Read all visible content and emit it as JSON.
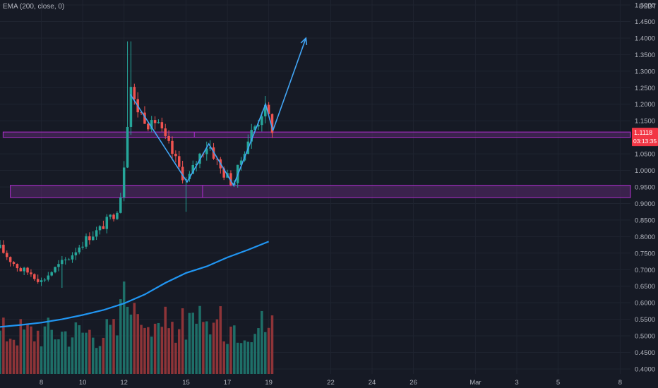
{
  "indicator": {
    "label": "EMA (200, close, 0)"
  },
  "currency": "USDT",
  "price_tag": {
    "price": "1.1118",
    "countdown": "03:13:35"
  },
  "colors": {
    "background": "#161a25",
    "grid": "#1f2430",
    "up": "#26a69a",
    "down": "#ef5350",
    "up_volume": "#1e6f68",
    "down_volume": "#8e3438",
    "ema": "#2196f3",
    "zone_fill": "#5b2a70",
    "zone_stroke": "#b02fd0",
    "pattern": "#42a5f5",
    "axis_text": "#b2b5be",
    "price_tag": "#f23645"
  },
  "chart_data": {
    "type": "candlestick",
    "y_axis": {
      "unit": "USDT",
      "ticks": [
        "1.5000",
        "1.4500",
        "1.4000",
        "1.3500",
        "1.3000",
        "1.2500",
        "1.2000",
        "1.1500",
        "1.1000",
        "1.0500",
        "1.0000",
        "0.9500",
        "0.9000",
        "0.8500",
        "0.8000",
        "0.7500",
        "0.7000",
        "0.6500",
        "0.6000",
        "0.5500",
        "0.5000",
        "0.4500",
        "0.4000"
      ],
      "range": [
        0.385,
        1.515
      ]
    },
    "x_axis": {
      "ticks": [
        "8",
        "10",
        "12",
        "15",
        "17",
        "19",
        "22",
        "24",
        "26",
        "Mar",
        "3",
        "5",
        "8"
      ],
      "day_start": 6,
      "day_end": 36.5
    },
    "candles_per_day": 6,
    "candle_start_day": 6,
    "close_path": [
      [
        6,
        0.765
      ],
      [
        6.5,
        0.73
      ],
      [
        7,
        0.7
      ],
      [
        7.5,
        0.69
      ],
      [
        8,
        0.665
      ],
      [
        8.5,
        0.695
      ],
      [
        9,
        0.72
      ],
      [
        9.4,
        0.74
      ],
      [
        9.8,
        0.77
      ],
      [
        10.3,
        0.8
      ],
      [
        10.8,
        0.82
      ],
      [
        11.3,
        0.855
      ],
      [
        11.6,
        0.875
      ],
      [
        11.8,
        0.91
      ],
      [
        11.95,
        0.985
      ],
      [
        12.05,
        1.06
      ],
      [
        12.15,
        1.12
      ],
      [
        12.25,
        1.3
      ],
      [
        12.4,
        1.22
      ],
      [
        12.7,
        1.18
      ],
      [
        13.0,
        1.16
      ],
      [
        13.3,
        1.13
      ],
      [
        13.6,
        1.16
      ],
      [
        13.9,
        1.1
      ],
      [
        14.2,
        1.07
      ],
      [
        14.5,
        1.03
      ],
      [
        14.8,
        0.99
      ],
      [
        15.05,
        0.965
      ],
      [
        15.3,
        1.0
      ],
      [
        15.6,
        1.04
      ],
      [
        15.9,
        1.07
      ],
      [
        16.1,
        1.08
      ],
      [
        16.4,
        1.04
      ],
      [
        16.7,
        1.0
      ],
      [
        17.0,
        0.98
      ],
      [
        17.3,
        0.96
      ],
      [
        17.6,
        1.02
      ],
      [
        17.9,
        1.08
      ],
      [
        18.2,
        1.12
      ],
      [
        18.5,
        1.15
      ],
      [
        18.75,
        1.19
      ],
      [
        18.95,
        1.17
      ],
      [
        19.2,
        1.12
      ]
    ],
    "ema": {
      "label": "EMA 200",
      "points": [
        [
          6,
          0.527
        ],
        [
          7,
          0.533
        ],
        [
          8,
          0.54
        ],
        [
          9,
          0.55
        ],
        [
          10,
          0.563
        ],
        [
          11,
          0.578
        ],
        [
          12,
          0.598
        ],
        [
          13,
          0.625
        ],
        [
          14,
          0.66
        ],
        [
          15,
          0.69
        ],
        [
          16,
          0.71
        ],
        [
          17,
          0.737
        ],
        [
          18,
          0.76
        ],
        [
          19,
          0.785
        ]
      ]
    },
    "volume": {
      "max": 1.0
    },
    "zones": [
      {
        "name": "resistance-zone",
        "x_start_day": 6.15,
        "x_mid_day": 15.4,
        "x_end_day": 36.5,
        "y_top": 1.116,
        "y_bottom": 1.1
      },
      {
        "name": "support-zone",
        "x_start_day": 6.5,
        "x_mid_day": 15.8,
        "x_end_day": 36.5,
        "y_top": 0.955,
        "y_bottom": 0.918
      }
    ],
    "pattern": {
      "w_points": [
        [
          12.3,
          1.23
        ],
        [
          15.05,
          0.965
        ],
        [
          16.1,
          1.08
        ],
        [
          17.3,
          0.955
        ],
        [
          18.85,
          1.2
        ],
        [
          19.2,
          1.12
        ]
      ],
      "arrow_to": [
        20.8,
        1.4
      ]
    }
  }
}
